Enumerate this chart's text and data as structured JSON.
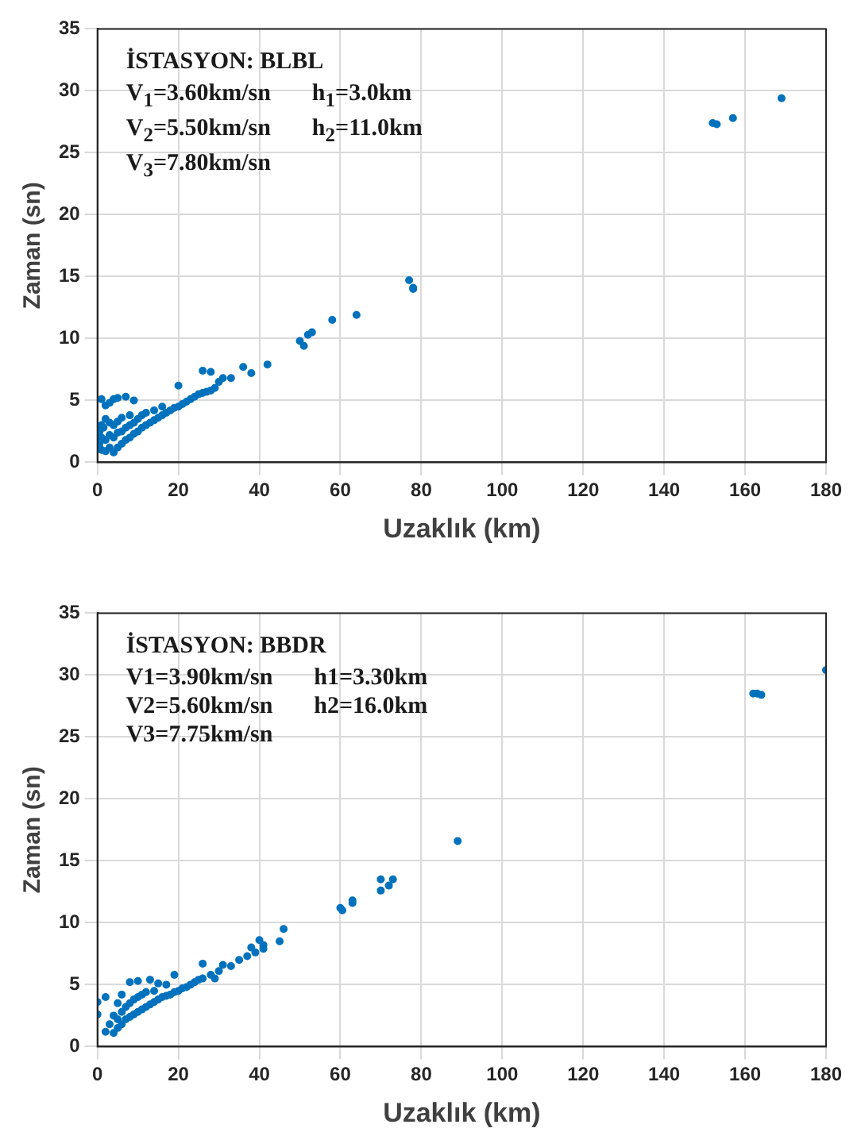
{
  "chart_data": [
    {
      "type": "scatter",
      "xlabel": "Uzaklık (km)",
      "ylabel": "Zaman (sn)",
      "color": "#0072bd",
      "marker": "circle",
      "grid": true,
      "xlim": [
        0,
        180
      ],
      "ylim": [
        0,
        35
      ],
      "xticks": [
        0,
        20,
        40,
        60,
        80,
        100,
        120,
        140,
        160,
        180
      ],
      "yticks": [
        0,
        5,
        10,
        15,
        20,
        25,
        30,
        35
      ],
      "annotations": [
        "İSTASYON: BLBL",
        "V$_{1}$=3.60km/sn",
        "h$_{1}$=3.0km",
        "V$_{2}$=5.50km/sn",
        "h$_{2}$=11.0km",
        "V$_{3}$=7.80km/sn"
      ],
      "x": [
        0.5,
        0.5,
        1,
        1,
        1,
        1.5,
        2,
        2,
        2,
        3,
        3,
        3,
        4,
        4,
        4,
        5,
        5,
        5,
        6,
        6,
        6,
        7,
        7,
        8,
        8,
        8,
        9,
        9,
        10,
        10,
        11,
        11,
        12,
        12,
        13,
        14,
        14,
        15,
        16,
        16,
        17,
        18,
        19,
        20,
        21,
        22,
        23,
        24,
        25,
        26,
        27,
        28,
        29,
        30,
        1,
        4,
        5,
        7,
        2,
        3,
        9,
        20,
        26,
        28,
        31,
        33,
        36,
        38,
        42,
        50,
        51,
        52,
        53,
        58,
        64,
        77,
        78,
        78,
        152,
        153,
        157,
        169
      ],
      "values": [
        1.5,
        2.5,
        1,
        2,
        3,
        2.8,
        0.9,
        1.8,
        3.5,
        1.2,
        2.2,
        3.2,
        0.8,
        2,
        3,
        1.2,
        2.4,
        3.3,
        1.5,
        2.5,
        3.6,
        1.8,
        2.8,
        2,
        3,
        3.8,
        2.3,
        3.2,
        2.5,
        3.5,
        2.8,
        3.8,
        3,
        4,
        3.2,
        3.4,
        4.2,
        3.6,
        3.8,
        4.5,
        4,
        4.2,
        4.4,
        4.5,
        4.7,
        4.9,
        5.1,
        5.3,
        5.5,
        5.6,
        5.7,
        5.8,
        6,
        6.5,
        5.1,
        5.1,
        5.2,
        5.3,
        4.6,
        4.8,
        5,
        6.2,
        7.4,
        7.3,
        6.8,
        6.8,
        7.7,
        7.2,
        7.9,
        9.8,
        9.4,
        10.3,
        10.5,
        11.5,
        11.9,
        14.7,
        14.1,
        14,
        27.4,
        27.3,
        27.8,
        29.4
      ]
    },
    {
      "type": "scatter",
      "xlabel": "Uzaklık (km)",
      "ylabel": "Zaman (sn)",
      "color": "#0072bd",
      "marker": "circle",
      "grid": true,
      "xlim": [
        0,
        180
      ],
      "ylim": [
        0,
        35
      ],
      "xticks": [
        0,
        20,
        40,
        60,
        80,
        100,
        120,
        140,
        160,
        180
      ],
      "yticks": [
        0,
        5,
        10,
        15,
        20,
        25,
        30,
        35
      ],
      "annotations": [
        "İSTASYON: BBDR",
        "V1=3.90km/sn",
        "h1=3.30km",
        "V2=5.60km/sn",
        "h2=16.0km",
        "V3=7.75km/sn"
      ],
      "x": [
        0,
        0,
        2,
        2,
        3,
        4,
        4,
        5,
        5,
        5,
        6,
        6,
        6,
        7,
        7,
        8,
        8,
        8,
        9,
        9,
        10,
        10,
        10,
        11,
        11,
        12,
        12,
        13,
        13,
        14,
        14,
        15,
        15,
        16,
        17,
        17,
        18,
        19,
        19,
        20,
        21,
        22,
        23,
        24,
        25,
        26,
        26,
        28,
        29,
        30,
        31,
        33,
        35,
        37,
        38,
        39,
        40,
        41,
        41,
        45,
        46,
        60,
        60.5,
        63,
        63,
        70,
        70,
        72,
        73,
        89,
        162,
        163,
        164,
        180
      ],
      "values": [
        2.6,
        3.6,
        4,
        1.2,
        1.8,
        1.1,
        2.5,
        1.5,
        2.2,
        3.5,
        1.8,
        2.8,
        4.2,
        2.2,
        3.2,
        2.4,
        3.5,
        5.2,
        2.6,
        3.8,
        2.8,
        4,
        5.3,
        3,
        4.2,
        3.2,
        4.4,
        3.4,
        5.4,
        3.6,
        4.5,
        3.8,
        5.1,
        4,
        4.1,
        5,
        4.2,
        4.4,
        5.8,
        4.5,
        4.7,
        4.8,
        5,
        5.2,
        5.4,
        5.5,
        6.7,
        5.8,
        5.5,
        6.1,
        6.6,
        6.5,
        7,
        7.3,
        8,
        7.6,
        8.6,
        8.2,
        7.9,
        8.5,
        9.5,
        11.2,
        11,
        11.8,
        11.6,
        13.5,
        12.6,
        13,
        13.5,
        16.6,
        28.5,
        28.5,
        28.4,
        30.4
      ]
    }
  ]
}
